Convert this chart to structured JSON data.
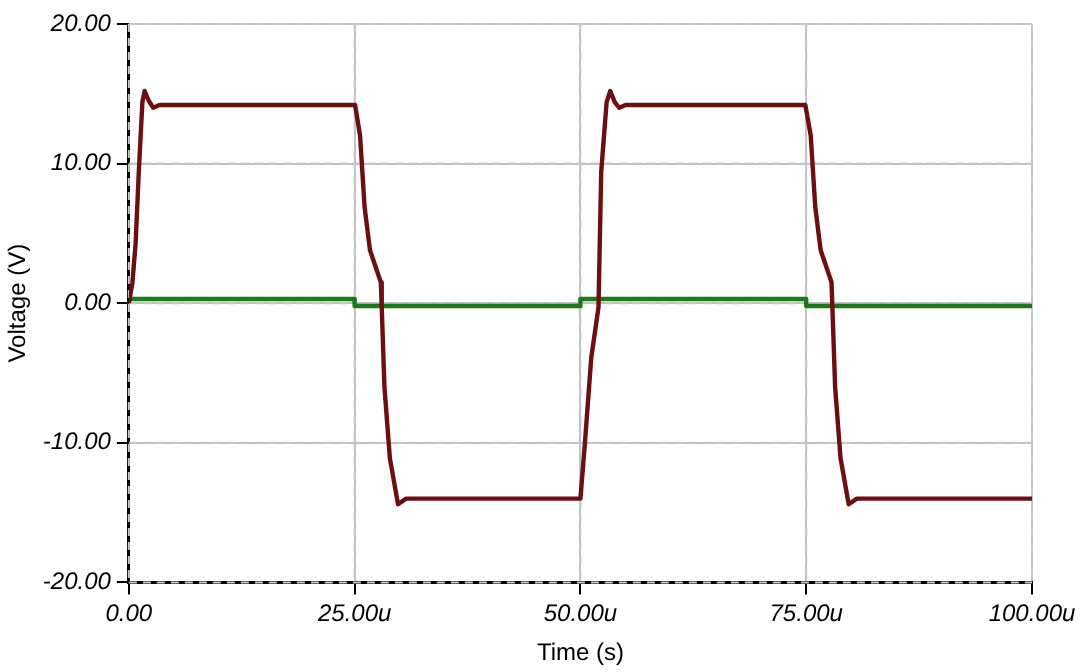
{
  "chart_data": {
    "type": "line",
    "xlabel": "Time (s)",
    "ylabel": "Voltage (V)",
    "xlim": [
      0,
      100
    ],
    "xticks": [
      {
        "value": 0,
        "label": "0.00"
      },
      {
        "value": 25,
        "label": "25.00u"
      },
      {
        "value": 50,
        "label": "50.00u"
      },
      {
        "value": 75,
        "label": "75.00u"
      },
      {
        "value": 100,
        "label": "100.00u"
      }
    ],
    "ylim": [
      -20,
      20
    ],
    "yticks": [
      {
        "value": -20,
        "label": "-20.00"
      },
      {
        "value": -10,
        "label": "-10.00"
      },
      {
        "value": 0,
        "label": "0.00"
      },
      {
        "value": 10,
        "label": "10.00"
      },
      {
        "value": 20,
        "label": "20.00"
      }
    ],
    "grid": true,
    "legend": false,
    "marker": "none",
    "line_style": "solid",
    "series": [
      {
        "color": "#6e0f0f",
        "x": [
          0,
          0.4,
          0.75,
          1.1,
          1.5,
          1.75,
          2.2,
          2.7,
          3.4,
          25.05,
          25.6,
          26.1,
          26.7,
          27.9,
          28.0,
          28.3,
          28.9,
          29.8,
          30.7,
          50.0,
          50.5,
          51.2,
          52.0,
          52.3,
          52.9,
          53.3,
          53.8,
          54.3,
          55.0,
          74.9,
          75.5,
          76.0,
          76.6,
          77.8,
          77.9,
          78.2,
          78.8,
          79.7,
          80.6,
          100
        ],
        "values": [
          0,
          1.5,
          4.3,
          9.4,
          14.4,
          15.2,
          14.5,
          14.0,
          14.2,
          14.2,
          12.0,
          6.9,
          3.8,
          1.5,
          -0.3,
          -6.0,
          -11.1,
          -14.4,
          -14.0,
          -14.0,
          -10.0,
          -3.9,
          -0.3,
          9.4,
          14.4,
          15.2,
          14.4,
          14.0,
          14.2,
          14.2,
          12.0,
          6.9,
          3.8,
          1.5,
          -0.3,
          -6.0,
          -11.1,
          -14.4,
          -14.0,
          -14.0
        ]
      },
      {
        "color": "#1a7a1a",
        "x": [
          0,
          25,
          25,
          50,
          50,
          75,
          75,
          100
        ],
        "values": [
          0.3,
          0.3,
          -0.2,
          -0.2,
          0.3,
          0.3,
          -0.2,
          -0.2
        ]
      }
    ]
  }
}
